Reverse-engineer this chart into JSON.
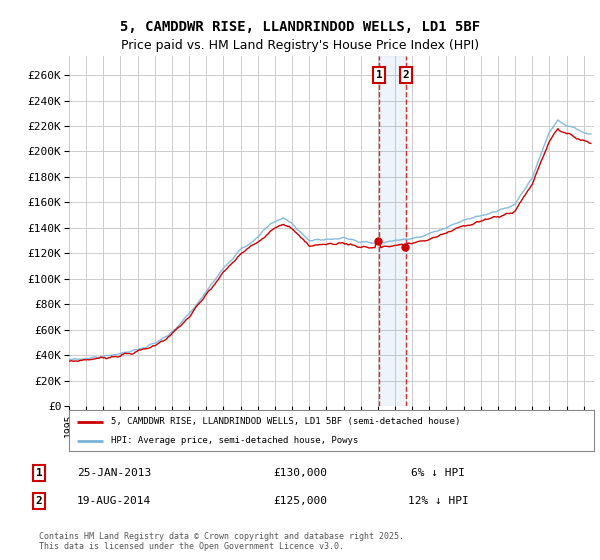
{
  "title": "5, CAMDDWR RISE, LLANDRINDOD WELLS, LD1 5BF",
  "subtitle": "Price paid vs. HM Land Registry's House Price Index (HPI)",
  "title_fontsize": 10,
  "subtitle_fontsize": 9,
  "ylim": [
    0,
    275000
  ],
  "hpi_color": "#7ab4d8",
  "price_color": "#cc0000",
  "sale1_date": "25-JAN-2013",
  "sale1_price": "£130,000",
  "sale1_pct": "6% ↓ HPI",
  "sale2_date": "19-AUG-2014",
  "sale2_price": "£125,000",
  "sale2_pct": "12% ↓ HPI",
  "legend_label1": "5, CAMDDWR RISE, LLANDRINDOD WELLS, LD1 5BF (semi-detached house)",
  "legend_label2": "HPI: Average price, semi-detached house, Powys",
  "footnote": "Contains HM Land Registry data © Crown copyright and database right 2025.\nThis data is licensed under the Open Government Licence v3.0.",
  "bg_color": "#ffffff",
  "grid_color": "#cccccc",
  "sale1_year": 2013.07,
  "sale2_year": 2014.63,
  "sale1_value": 130000,
  "sale2_value": 125000
}
